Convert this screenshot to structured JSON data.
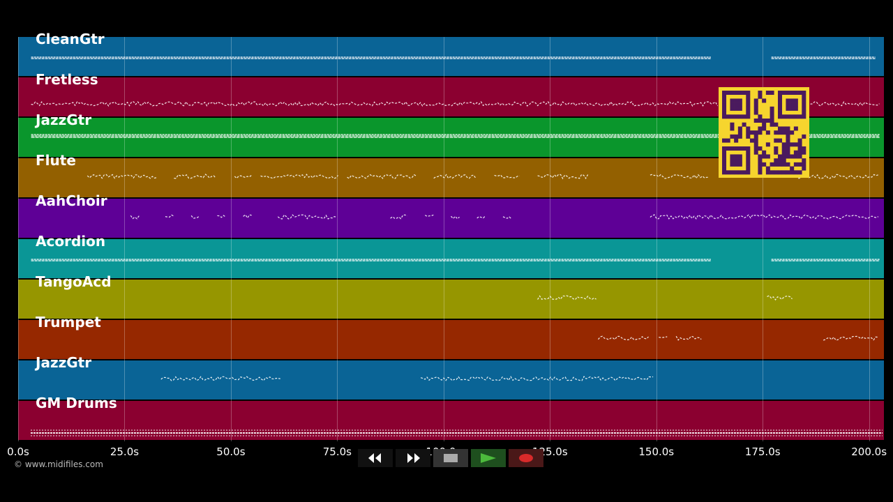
{
  "tracks": [
    {
      "name": "CleanGtr",
      "color": "#0a6496",
      "pattern": "dense",
      "segments": [
        [
          0.015,
          0.8
        ],
        [
          0.87,
          0.99
        ]
      ]
    },
    {
      "name": "Fretless",
      "color": "#8b0030",
      "pattern": "line",
      "segments": [
        [
          0.015,
          0.81
        ],
        [
          0.915,
          0.995
        ]
      ]
    },
    {
      "name": "JazzGtr",
      "color": "#0a962c",
      "pattern": "thick",
      "segments": [
        [
          0.015,
          0.81
        ],
        [
          0.87,
          0.995
        ]
      ]
    },
    {
      "name": "Flute",
      "color": "#936000",
      "pattern": "phrases",
      "segments": [
        [
          0.08,
          0.16
        ],
        [
          0.18,
          0.23
        ],
        [
          0.25,
          0.27
        ],
        [
          0.28,
          0.37
        ],
        [
          0.38,
          0.46
        ],
        [
          0.48,
          0.53
        ],
        [
          0.55,
          0.58
        ],
        [
          0.6,
          0.66
        ],
        [
          0.73,
          0.8
        ],
        [
          0.87,
          0.995
        ]
      ]
    },
    {
      "name": "AahChoir",
      "color": "#5e0096",
      "pattern": "phrases",
      "segments": [
        [
          0.13,
          0.14
        ],
        [
          0.17,
          0.18
        ],
        [
          0.2,
          0.21
        ],
        [
          0.23,
          0.24
        ],
        [
          0.26,
          0.27
        ],
        [
          0.3,
          0.37
        ],
        [
          0.43,
          0.45
        ],
        [
          0.47,
          0.48
        ],
        [
          0.5,
          0.51
        ],
        [
          0.53,
          0.54
        ],
        [
          0.56,
          0.57
        ],
        [
          0.73,
          0.995
        ]
      ]
    },
    {
      "name": "Acordion",
      "color": "#0a9696",
      "pattern": "dense",
      "segments": [
        [
          0.015,
          0.8
        ],
        [
          0.87,
          0.995
        ]
      ]
    },
    {
      "name": "TangoAcd",
      "color": "#969600",
      "pattern": "phrases",
      "segments": [
        [
          0.6,
          0.67
        ],
        [
          0.865,
          0.895
        ]
      ]
    },
    {
      "name": "Trumpet",
      "color": "#962800",
      "pattern": "phrases",
      "segments": [
        [
          0.67,
          0.73
        ],
        [
          0.74,
          0.75
        ],
        [
          0.76,
          0.79
        ],
        [
          0.93,
          0.995
        ]
      ]
    },
    {
      "name": "JazzGtr",
      "color": "#0a6496",
      "pattern": "phrases",
      "segments": [
        [
          0.165,
          0.305
        ],
        [
          0.465,
          0.735
        ]
      ]
    },
    {
      "name": "GM Drums",
      "color": "#8b0030",
      "pattern": "drums",
      "segments": [
        [
          0.0,
          1.0
        ]
      ]
    }
  ],
  "time_axis": {
    "max_seconds": 203.5,
    "ticks": [
      {
        "t": 0,
        "label": "0.0s"
      },
      {
        "t": 25,
        "label": "25.0s"
      },
      {
        "t": 50,
        "label": "50.0s"
      },
      {
        "t": 75,
        "label": "75.0s"
      },
      {
        "t": 100,
        "label": "100.0s"
      },
      {
        "t": 125,
        "label": "125.0s"
      },
      {
        "t": 150,
        "label": "150.0s"
      },
      {
        "t": 175,
        "label": "175.0s"
      },
      {
        "t": 200,
        "label": "200.0s"
      }
    ]
  },
  "copyright": "© www.midifiles.com",
  "transport": {
    "rewind_icon": "rewind-icon",
    "fast_forward_icon": "fast-forward-icon",
    "stop_icon": "stop-icon",
    "play_icon": "play-icon",
    "record_icon": "record-icon"
  },
  "qr_code": "qr-code"
}
